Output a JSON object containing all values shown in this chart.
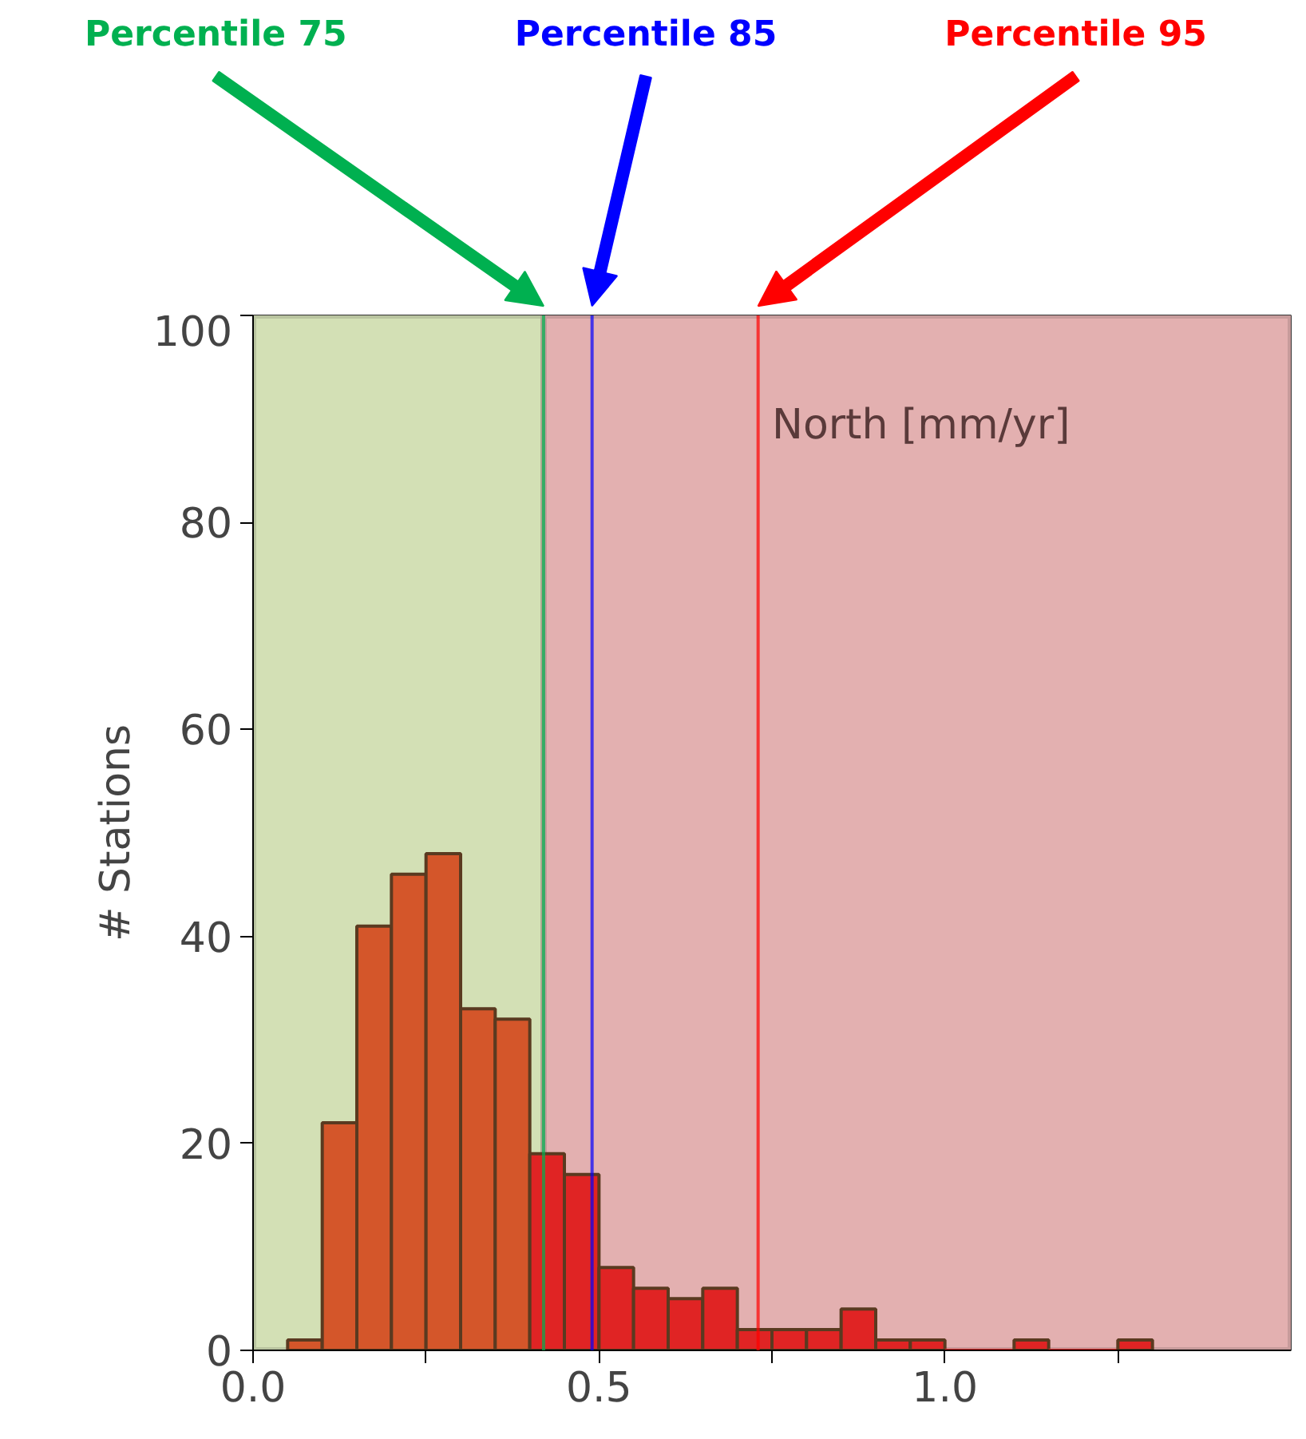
{
  "chart_data": {
    "type": "histogram",
    "ylabel": "# Stations",
    "bins": [
      0.05,
      0.1,
      0.15,
      0.2,
      0.25,
      0.3,
      0.35,
      0.4,
      0.45,
      0.5,
      0.55,
      0.6,
      0.65,
      0.7,
      0.75,
      0.8,
      0.85,
      0.9,
      0.95,
      1.0,
      1.05,
      1.1,
      1.15,
      1.2,
      1.25,
      1.3
    ],
    "values": [
      1,
      22,
      41,
      46,
      48,
      33,
      32,
      19,
      17,
      8,
      6,
      5,
      6,
      2,
      2,
      2,
      4,
      1,
      1,
      0,
      0,
      1,
      0,
      0,
      1
    ],
    "colors": [
      "#d4562a",
      "#d4562a",
      "#d4562a",
      "#d4562a",
      "#d4562a",
      "#d4562a",
      "#d4562a",
      "#e02424",
      "#e02424",
      "#e02424",
      "#e02424",
      "#e02424",
      "#e02424",
      "#e02424",
      "#e02424",
      "#e02424",
      "#e02424",
      "#e02424",
      "#e02424",
      "#e02424",
      "#e02424",
      "#e02424",
      "#e02424",
      "#e02424",
      "#e02424"
    ],
    "xlim": [
      0,
      1.5
    ],
    "ylim": [
      0,
      100
    ],
    "xticks": [
      {
        "value": 0,
        "label": "0.0"
      },
      {
        "value": 0.25,
        "label": null
      },
      {
        "value": 0.5,
        "label": "0.5"
      },
      {
        "value": 0.75,
        "label": null
      },
      {
        "value": 1.0,
        "label": "1.0"
      },
      {
        "value": 1.25,
        "label": null
      }
    ],
    "yticks": [
      0,
      20,
      40,
      60,
      80,
      100
    ],
    "bands": [
      {
        "axis": "x",
        "from": 0,
        "to": 0.42,
        "color": "#d3e0b5"
      },
      {
        "axis": "x",
        "from": 0.42,
        "to": 1.5,
        "color": "#e3b0b0"
      }
    ],
    "ref_lines": [
      {
        "axis": "x",
        "value": 0.42,
        "label": "Percentile 75",
        "color": "#00b050"
      },
      {
        "axis": "x",
        "value": 0.49,
        "label": "Percentile 85",
        "color": "#0000ff"
      },
      {
        "axis": "x",
        "value": 0.73,
        "label": "Percentile 95",
        "color": "#ff0000"
      }
    ],
    "annotations": [
      "North [mm/yr]"
    ]
  }
}
